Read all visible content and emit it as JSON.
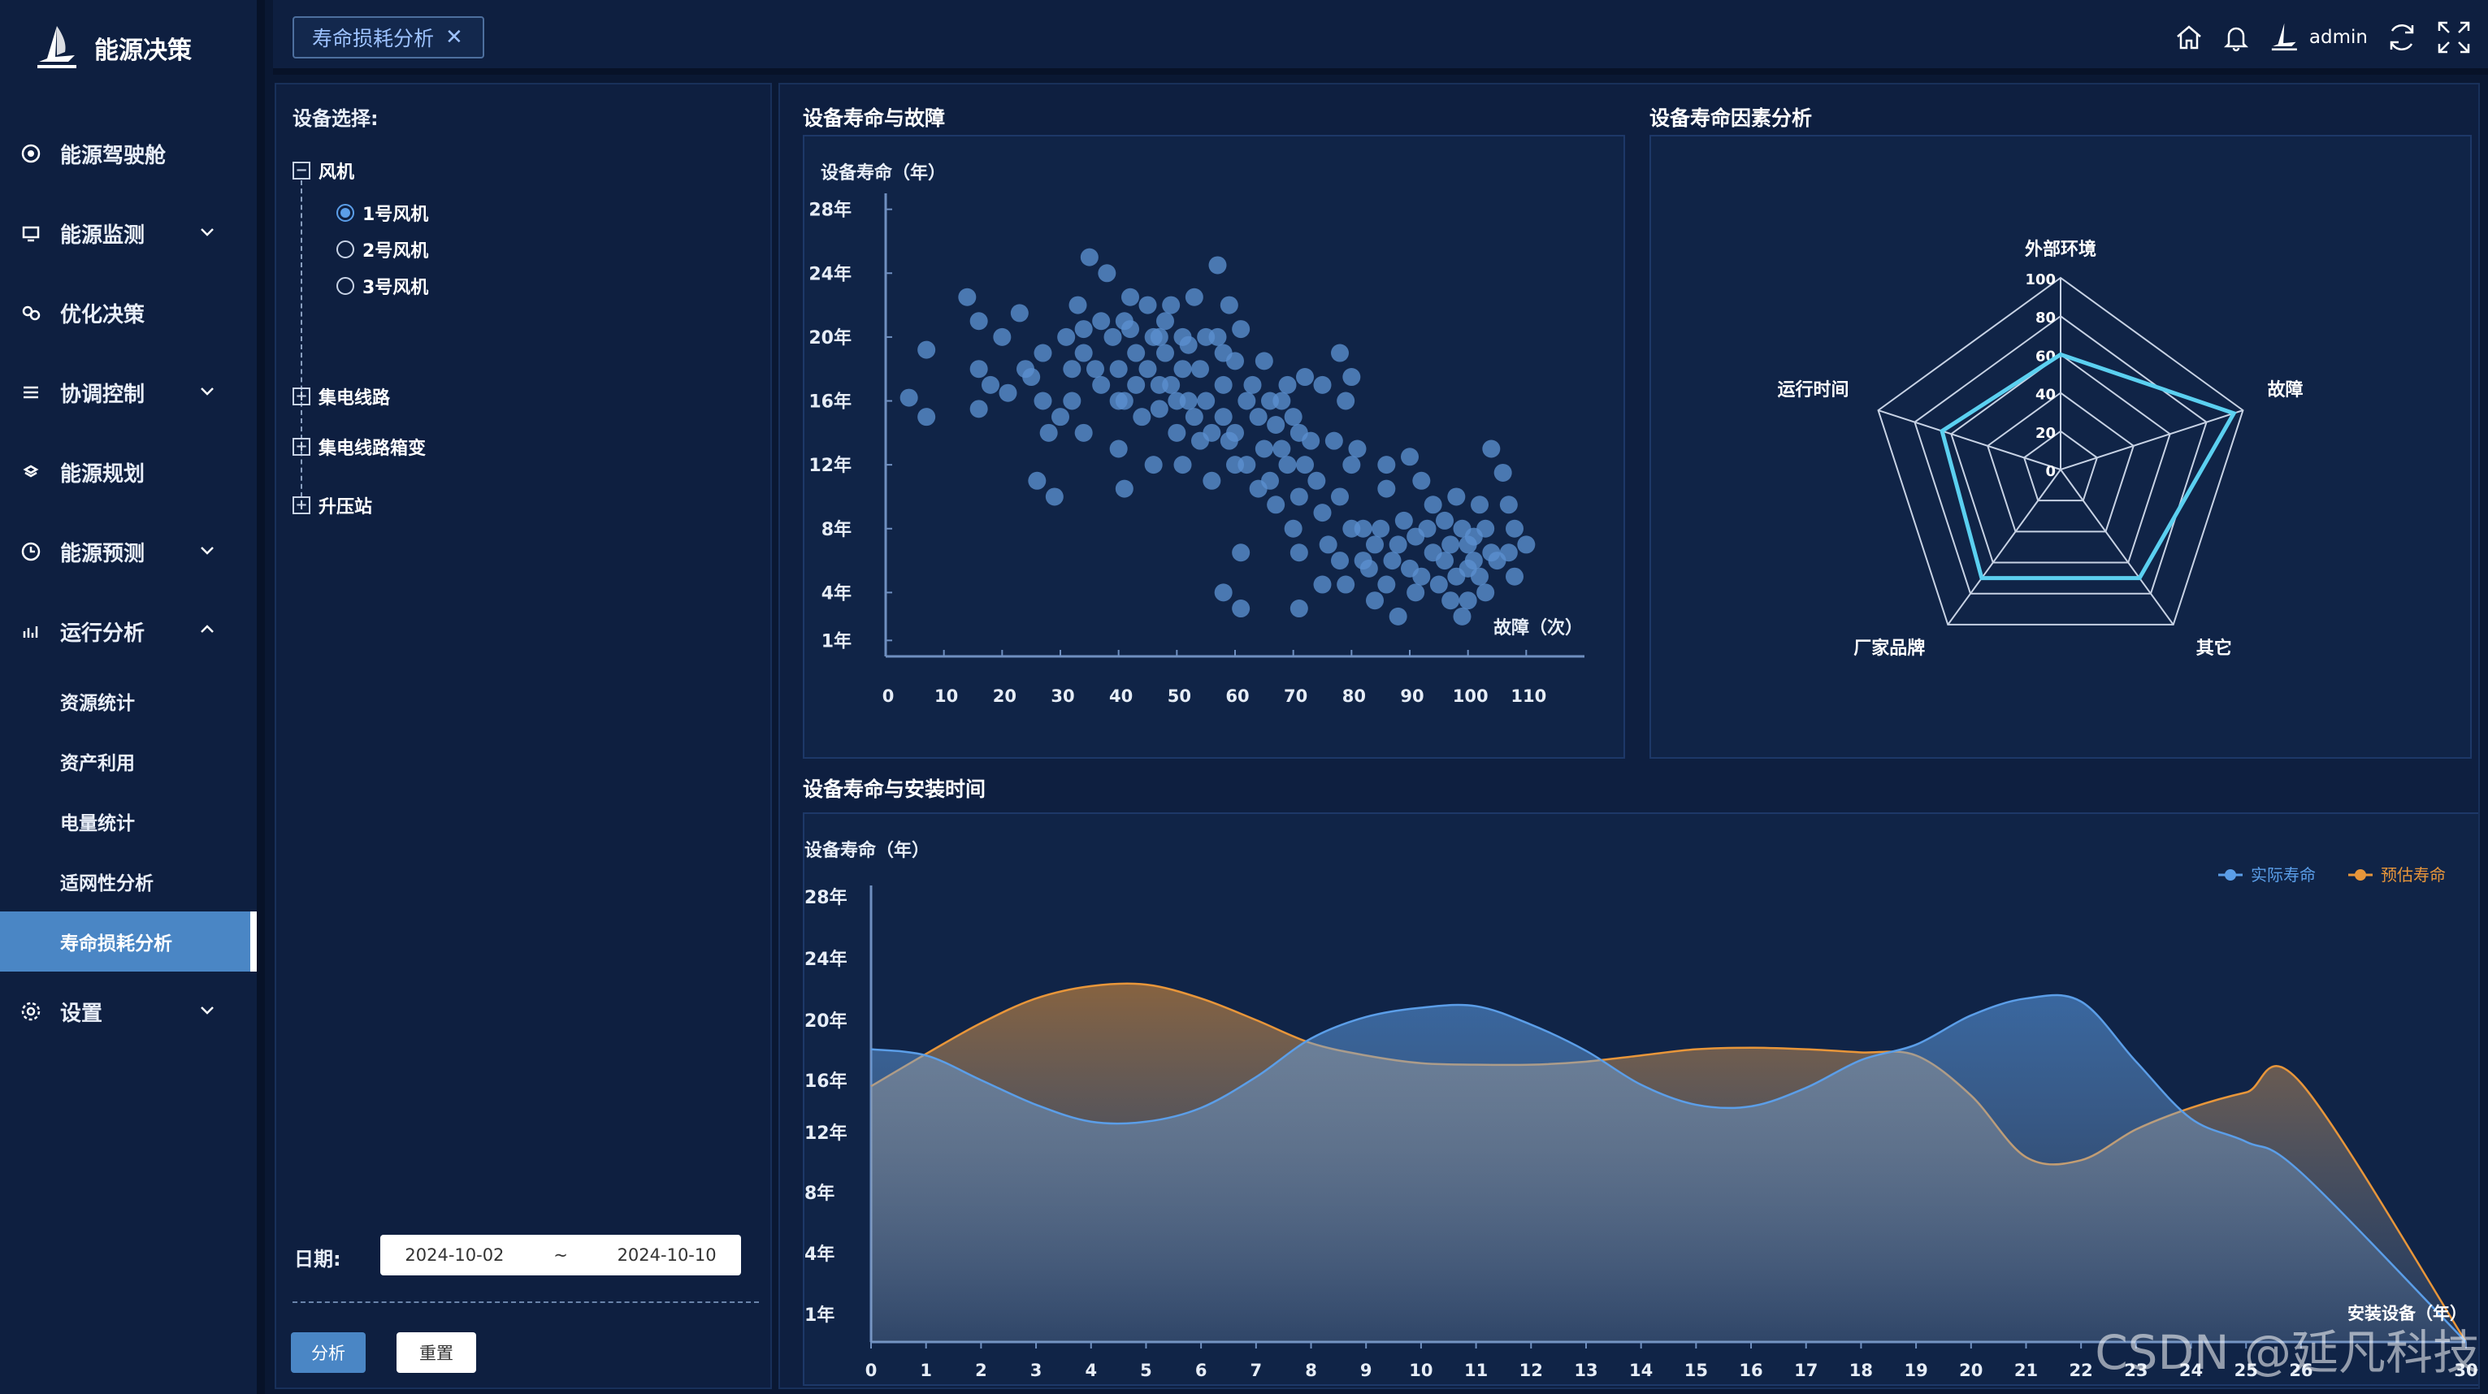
{
  "app": {
    "title": "能源决策"
  },
  "menu": [
    {
      "label": "能源驾驶舱",
      "icon": "dashboard-icon",
      "chev": ""
    },
    {
      "label": "能源监测",
      "icon": "monitor-icon",
      "chev": "down"
    },
    {
      "label": "优化决策",
      "icon": "decision-icon",
      "chev": ""
    },
    {
      "label": "协调控制",
      "icon": "control-icon",
      "chev": "down"
    },
    {
      "label": "能源规划",
      "icon": "plan-icon",
      "chev": ""
    },
    {
      "label": "能源预测",
      "icon": "forecast-icon",
      "chev": "down"
    },
    {
      "label": "运行分析",
      "icon": "analysis-icon",
      "chev": "up"
    }
  ],
  "submenu": [
    "资源统计",
    "资产利用",
    "电量统计",
    "适网性分析",
    "寿命损耗分析"
  ],
  "settings": {
    "label": "设置"
  },
  "tab": {
    "label": "寿命损耗分析",
    "close": "✕"
  },
  "user": {
    "name": "admin"
  },
  "filter": {
    "device_label": "设备选择:",
    "tree": {
      "fan": "风机",
      "fans": [
        "1号风机",
        "2号风机",
        "3号风机"
      ],
      "selected": 0,
      "collector": "集电线路",
      "collector_box": "集电线路箱变",
      "booster": "升压站"
    },
    "date_label": "日期:",
    "date_from": "2024-10-02",
    "date_sep": "~",
    "date_to": "2024-10-10",
    "analyze_btn": "分析",
    "reset_btn": "重置"
  },
  "panels": {
    "scatter_title": "设备寿命与故障",
    "radar_title": "设备寿命因素分析",
    "area_title": "设备寿命与安装时间"
  },
  "colors": {
    "accent": "#4a86c5",
    "actual": "#5b9ee8",
    "forecast": "#e8963a",
    "radar": "#5bd0f0"
  },
  "chart_data": [
    {
      "type": "scatter",
      "title": "设备寿命与故障",
      "ylabel": "设备寿命（年）",
      "xlabel": "故障（次）",
      "x_ticks": [
        0,
        10,
        20,
        30,
        40,
        50,
        60,
        70,
        80,
        90,
        100,
        110
      ],
      "y_ticks": [
        "1年",
        "4年",
        "8年",
        "12年",
        "16年",
        "20年",
        "24年",
        "28年"
      ],
      "xlim": [
        0,
        120
      ],
      "ylim": [
        0,
        29
      ],
      "points": [
        [
          4,
          16.2
        ],
        [
          7,
          19.2
        ],
        [
          7,
          15
        ],
        [
          14,
          22.5
        ],
        [
          16,
          21
        ],
        [
          16,
          18
        ],
        [
          16,
          15.5
        ],
        [
          18,
          17
        ],
        [
          20,
          20
        ],
        [
          21,
          16.5
        ],
        [
          23,
          21.5
        ],
        [
          24,
          18
        ],
        [
          25,
          17.5
        ],
        [
          26,
          11
        ],
        [
          27,
          19
        ],
        [
          27,
          16
        ],
        [
          28,
          14
        ],
        [
          29,
          10
        ],
        [
          30,
          15
        ],
        [
          31,
          20
        ],
        [
          32,
          18
        ],
        [
          32,
          16
        ],
        [
          33,
          22
        ],
        [
          34,
          14
        ],
        [
          34,
          19
        ],
        [
          34,
          20.5
        ],
        [
          35,
          25
        ],
        [
          36,
          18
        ],
        [
          37,
          17
        ],
        [
          37,
          21
        ],
        [
          38,
          24
        ],
        [
          39,
          20
        ],
        [
          40,
          18
        ],
        [
          40,
          16
        ],
        [
          40,
          13
        ],
        [
          41,
          10.5
        ],
        [
          41,
          16
        ],
        [
          41,
          21
        ],
        [
          42,
          22.5
        ],
        [
          42,
          20.5
        ],
        [
          43,
          19
        ],
        [
          43,
          17
        ],
        [
          44,
          15
        ],
        [
          45,
          22
        ],
        [
          45,
          18
        ],
        [
          46,
          20
        ],
        [
          46,
          12
        ],
        [
          47,
          17
        ],
        [
          47,
          15.5
        ],
        [
          47,
          20
        ],
        [
          48,
          21
        ],
        [
          48,
          19
        ],
        [
          49,
          22
        ],
        [
          49,
          17
        ],
        [
          50,
          16
        ],
        [
          50,
          14
        ],
        [
          51,
          20
        ],
        [
          51,
          18
        ],
        [
          51,
          12
        ],
        [
          52,
          19.5
        ],
        [
          52,
          16
        ],
        [
          53,
          15
        ],
        [
          53,
          22.5
        ],
        [
          54,
          13.5
        ],
        [
          54,
          18
        ],
        [
          55,
          20
        ],
        [
          55,
          16
        ],
        [
          56,
          14
        ],
        [
          56,
          11
        ],
        [
          57,
          24.5
        ],
        [
          57,
          20
        ],
        [
          58,
          19
        ],
        [
          58,
          17
        ],
        [
          58,
          15
        ],
        [
          58,
          4
        ],
        [
          59,
          22
        ],
        [
          59,
          13.5
        ],
        [
          60,
          18.5
        ],
        [
          60,
          14
        ],
        [
          60,
          12
        ],
        [
          61,
          20.5
        ],
        [
          61,
          6.5
        ],
        [
          61,
          3
        ],
        [
          62,
          16
        ],
        [
          62,
          12
        ],
        [
          63,
          17
        ],
        [
          64,
          15
        ],
        [
          64,
          10.5
        ],
        [
          65,
          18.5
        ],
        [
          65,
          13
        ],
        [
          66,
          16
        ],
        [
          66,
          11
        ],
        [
          67,
          14.5
        ],
        [
          67,
          9.5
        ],
        [
          68,
          16
        ],
        [
          68,
          13
        ],
        [
          69,
          12
        ],
        [
          69,
          17
        ],
        [
          70,
          15
        ],
        [
          70,
          8
        ],
        [
          71,
          14
        ],
        [
          71,
          10
        ],
        [
          71,
          6.5
        ],
        [
          71,
          3
        ],
        [
          72,
          17.5
        ],
        [
          72,
          12
        ],
        [
          73,
          13.5
        ],
        [
          74,
          11
        ],
        [
          75,
          17
        ],
        [
          75,
          9
        ],
        [
          75,
          4.5
        ],
        [
          76,
          7
        ],
        [
          77,
          13.5
        ],
        [
          78,
          19
        ],
        [
          78,
          10
        ],
        [
          78,
          6
        ],
        [
          79,
          16
        ],
        [
          79,
          4.5
        ],
        [
          80,
          17.5
        ],
        [
          80,
          12
        ],
        [
          80,
          8
        ],
        [
          81,
          13
        ],
        [
          82,
          8
        ],
        [
          82,
          6
        ],
        [
          83,
          5.5
        ],
        [
          84,
          3.5
        ],
        [
          84,
          7
        ],
        [
          85,
          8
        ],
        [
          86,
          10.5
        ],
        [
          86,
          12
        ],
        [
          86,
          4.5
        ],
        [
          87,
          6
        ],
        [
          88,
          2.5
        ],
        [
          88,
          7
        ],
        [
          89,
          8.5
        ],
        [
          90,
          12.5
        ],
        [
          90,
          5.5
        ],
        [
          91,
          4
        ],
        [
          91,
          7.5
        ],
        [
          92,
          11
        ],
        [
          92,
          5
        ],
        [
          93,
          8
        ],
        [
          94,
          9.5
        ],
        [
          94,
          6.5
        ],
        [
          95,
          4.5
        ],
        [
          96,
          8.5
        ],
        [
          96,
          6
        ],
        [
          97,
          3.5
        ],
        [
          97,
          7
        ],
        [
          98,
          10
        ],
        [
          98,
          5
        ],
        [
          99,
          8
        ],
        [
          99,
          2.5
        ],
        [
          100,
          7
        ],
        [
          100,
          5.5
        ],
        [
          100,
          3.5
        ],
        [
          101,
          7.5
        ],
        [
          101,
          6
        ],
        [
          102,
          9.5
        ],
        [
          102,
          5
        ],
        [
          103,
          8
        ],
        [
          103,
          4
        ],
        [
          104,
          6.5
        ],
        [
          104,
          13
        ],
        [
          105,
          6
        ],
        [
          106,
          11.5
        ],
        [
          107,
          9.5
        ],
        [
          107,
          6.5
        ],
        [
          108,
          8
        ],
        [
          108,
          5
        ],
        [
          110,
          7
        ]
      ]
    },
    {
      "type": "radar",
      "title": "设备寿命因素分析",
      "indicators": [
        "外部环境",
        "故障",
        "其它",
        "厂家品牌",
        "运行时间"
      ],
      "max": 100,
      "ticks": [
        "100",
        "80",
        "60",
        "40",
        "20",
        "0"
      ],
      "values": [
        60,
        95,
        70,
        70,
        65
      ]
    },
    {
      "type": "area",
      "title": "设备寿命与安装时间",
      "ylabel": "设备寿命（年）",
      "xlabel": "安装设备（年）",
      "x": [
        0,
        1,
        2,
        3,
        4,
        5,
        6,
        7,
        8,
        9,
        10,
        11,
        12,
        13,
        14,
        15,
        16,
        17,
        18,
        19,
        20,
        21,
        22,
        23,
        24,
        25,
        26,
        30
      ],
      "y_ticks": [
        "1年",
        "4年",
        "8年",
        "12年",
        "16年",
        "20年",
        "24年",
        "28年"
      ],
      "ylim": [
        0,
        29
      ],
      "series": [
        {
          "name": "实际寿命",
          "color": "#5b9ee8",
          "values": [
            19,
            18.6,
            17,
            15.4,
            14.3,
            14.3,
            15.2,
            17.2,
            19.7,
            21.1,
            21.7,
            21.8,
            20.6,
            18.9,
            16.7,
            15.4,
            15.3,
            16.5,
            18.3,
            19.3,
            21.2,
            22.3,
            22.1,
            18.2,
            14.5,
            13,
            11,
            0
          ]
        },
        {
          "name": "预估寿命",
          "color": "#e8963a",
          "values": [
            16.6,
            18.7,
            20.7,
            22.3,
            23.1,
            23.2,
            22.3,
            20.9,
            19.4,
            18.6,
            18.1,
            18.0,
            18.0,
            18.2,
            18.6,
            19.0,
            19.1,
            19.0,
            18.8,
            18.6,
            16,
            12,
            11.8,
            13.8,
            15.2,
            16.2,
            16.8,
            0
          ]
        }
      ]
    }
  ]
}
